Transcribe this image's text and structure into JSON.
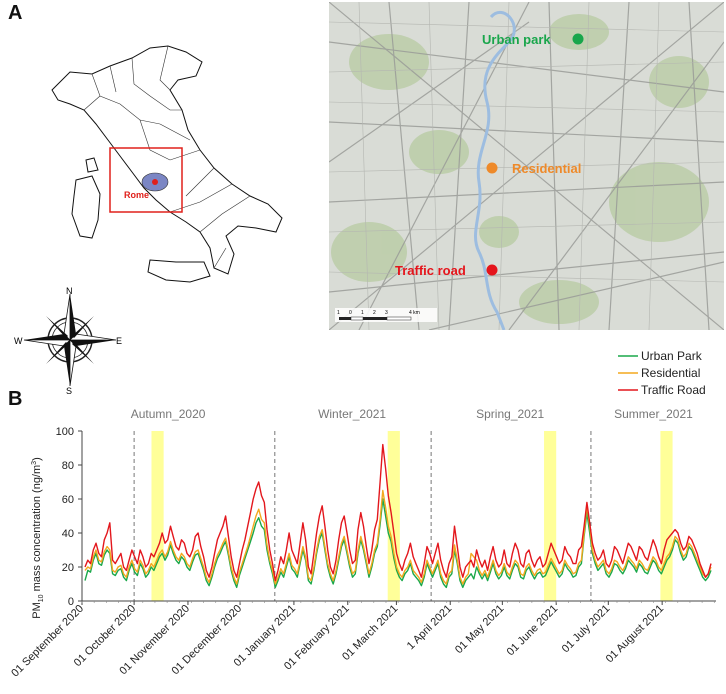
{
  "panels": {
    "a": "A",
    "b": "B"
  },
  "italy_map": {
    "highlight_label": "Rome",
    "frame_color": "#e0201b",
    "region_color": "#7b86c4"
  },
  "compass": {
    "n": "N",
    "s": "S",
    "e": "E",
    "w": "W"
  },
  "rome_map": {
    "sites": [
      {
        "name": "Urban park",
        "color": "#19a64b"
      },
      {
        "name": "Residential",
        "color": "#ee8a2a"
      },
      {
        "name": "Traffic road",
        "color": "#e5141b"
      }
    ],
    "scale_labels": [
      "1",
      "0",
      "1",
      "2",
      "3",
      "4 km"
    ]
  },
  "chart_data": {
    "type": "line",
    "title": "",
    "ylabel_main": "PM",
    "ylabel_sub": "10",
    "ylabel_rest": " mass concentration  (ng/m",
    "ylabel_sup": "3",
    "ylabel_end": ")",
    "ylim": [
      0,
      100
    ],
    "yticks": [
      0,
      20,
      40,
      60,
      80,
      100
    ],
    "x_start": "2020-09-01",
    "x_end": "2021-09-01",
    "xtick_labels": [
      {
        "date": "2020-09-01",
        "label": "01 September 2020"
      },
      {
        "date": "2020-10-01",
        "label": "01 October 2020"
      },
      {
        "date": "2020-11-01",
        "label": "01 November 2020"
      },
      {
        "date": "2020-12-01",
        "label": "01 December 2020"
      },
      {
        "date": "2021-01-01",
        "label": "01 January 2021"
      },
      {
        "date": "2021-02-01",
        "label": "01 February 2021"
      },
      {
        "date": "2021-03-01",
        "label": "01 March 2021"
      },
      {
        "date": "2021-04-01",
        "label": "1 April 2021"
      },
      {
        "date": "2021-05-01",
        "label": "01 May 2021"
      },
      {
        "date": "2021-06-01",
        "label": "01 June 2021"
      },
      {
        "date": "2021-07-01",
        "label": "01 July 2021"
      },
      {
        "date": "2021-08-01",
        "label": "01 August 2021"
      }
    ],
    "seasons": [
      {
        "label": "Autumn_2020",
        "start": "2020-09-01",
        "end": "2020-10-01"
      },
      {
        "label": "Winter_2021",
        "start": "2020-12-21",
        "end": "2021-03-20"
      },
      {
        "label": "Spring_2021",
        "start": "2021-03-21",
        "end": "2021-06-20"
      },
      {
        "label": "Summer_2021",
        "start": "2021-06-21",
        "end": "2021-09-01"
      }
    ],
    "season_dividers": [
      "2020-10-01",
      "2020-12-21",
      "2021-03-21",
      "2021-06-21"
    ],
    "highlights": [
      {
        "start": "2020-10-11",
        "end": "2020-10-18"
      },
      {
        "start": "2021-02-24",
        "end": "2021-03-03"
      },
      {
        "start": "2021-05-25",
        "end": "2021-06-01"
      },
      {
        "start": "2021-07-31",
        "end": "2021-08-07"
      }
    ],
    "highlight_color": "#ffff99",
    "series": [
      {
        "name": "Urban Park",
        "color": "#1aa84a",
        "values": [
          12,
          18,
          17,
          24,
          28,
          22,
          21,
          27,
          30,
          28,
          16,
          15,
          18,
          19,
          14,
          12,
          18,
          22,
          17,
          15,
          22,
          19,
          14,
          16,
          20,
          18,
          22,
          26,
          28,
          24,
          27,
          33,
          28,
          24,
          22,
          26,
          24,
          20,
          18,
          23,
          27,
          28,
          23,
          18,
          12,
          9,
          14,
          20,
          25,
          28,
          32,
          35,
          27,
          18,
          12,
          8,
          15,
          20,
          25,
          30,
          35,
          40,
          46,
          49,
          44,
          42,
          30,
          22,
          16,
          8,
          12,
          17,
          14,
          20,
          26,
          19,
          17,
          14,
          22,
          30,
          24,
          12,
          10,
          18,
          28,
          36,
          40,
          30,
          20,
          14,
          10,
          16,
          24,
          32,
          36,
          28,
          20,
          14,
          16,
          28,
          36,
          30,
          22,
          14,
          20,
          28,
          32,
          45,
          60,
          50,
          40,
          35,
          25,
          18,
          14,
          12,
          16,
          18,
          22,
          16,
          14,
          12,
          9,
          14,
          22,
          18,
          14,
          18,
          22,
          14,
          10,
          8,
          14,
          16,
          30,
          22,
          12,
          8,
          12,
          14,
          16,
          13,
          20,
          16,
          13,
          16,
          12,
          17,
          22,
          16,
          13,
          15,
          20,
          15,
          13,
          18,
          22,
          20,
          14,
          13,
          18,
          20,
          16,
          13,
          16,
          17,
          14,
          15,
          19,
          23,
          20,
          17,
          14,
          16,
          22,
          19,
          17,
          14,
          15,
          20,
          22,
          38,
          52,
          40,
          28,
          22,
          18,
          20,
          22,
          16,
          14,
          17,
          22,
          21,
          18,
          16,
          19,
          24,
          22,
          20,
          17,
          22,
          20,
          17,
          16,
          20,
          24,
          22,
          18,
          16,
          20,
          24,
          26,
          30,
          36,
          34,
          28,
          24,
          26,
          32,
          30,
          26,
          22,
          18,
          14,
          12,
          14,
          18
        ]
      },
      {
        "name": "Residential",
        "color": "#f3a81f",
        "values": [
          18,
          20,
          19,
          26,
          30,
          24,
          23,
          29,
          32,
          30,
          18,
          17,
          20,
          21,
          16,
          14,
          20,
          24,
          19,
          17,
          24,
          21,
          16,
          18,
          22,
          20,
          24,
          28,
          30,
          26,
          29,
          35,
          30,
          26,
          24,
          28,
          26,
          22,
          20,
          25,
          29,
          30,
          25,
          20,
          14,
          11,
          16,
          22,
          27,
          30,
          34,
          37,
          29,
          20,
          14,
          10,
          17,
          22,
          27,
          32,
          38,
          44,
          50,
          54,
          48,
          46,
          33,
          24,
          18,
          10,
          14,
          19,
          16,
          22,
          28,
          21,
          19,
          16,
          24,
          32,
          26,
          14,
          12,
          20,
          30,
          38,
          42,
          32,
          22,
          16,
          12,
          18,
          26,
          34,
          38,
          30,
          22,
          16,
          18,
          30,
          38,
          32,
          24,
          16,
          22,
          30,
          34,
          48,
          65,
          55,
          44,
          38,
          28,
          20,
          16,
          14,
          18,
          20,
          24,
          18,
          16,
          14,
          11,
          16,
          24,
          20,
          16,
          20,
          24,
          16,
          12,
          10,
          16,
          18,
          33,
          24,
          14,
          10,
          14,
          16,
          28,
          26,
          24,
          18,
          15,
          18,
          14,
          19,
          24,
          18,
          15,
          17,
          22,
          17,
          15,
          20,
          24,
          22,
          16,
          15,
          20,
          22,
          18,
          15,
          18,
          19,
          16,
          17,
          21,
          25,
          22,
          19,
          16,
          18,
          24,
          21,
          19,
          16,
          17,
          22,
          24,
          40,
          56,
          44,
          30,
          24,
          20,
          22,
          24,
          18,
          16,
          19,
          24,
          23,
          20,
          18,
          21,
          26,
          24,
          22,
          19,
          24,
          22,
          19,
          18,
          22,
          26,
          24,
          20,
          18,
          22,
          26,
          28,
          32,
          38,
          36,
          30,
          26,
          28,
          34,
          32,
          28,
          24,
          20,
          16,
          14,
          16,
          20
        ]
      },
      {
        "name": "Traffic Road",
        "color": "#e3171d",
        "values": [
          20,
          24,
          22,
          30,
          34,
          28,
          26,
          36,
          40,
          46,
          24,
          22,
          25,
          28,
          20,
          18,
          24,
          30,
          26,
          22,
          30,
          26,
          20,
          22,
          28,
          26,
          30,
          34,
          40,
          34,
          36,
          44,
          38,
          32,
          30,
          36,
          34,
          28,
          26,
          30,
          38,
          40,
          32,
          26,
          18,
          14,
          20,
          28,
          36,
          40,
          44,
          50,
          38,
          26,
          18,
          14,
          22,
          30,
          36,
          44,
          52,
          60,
          66,
          70,
          62,
          58,
          42,
          30,
          22,
          12,
          18,
          26,
          22,
          30,
          40,
          30,
          26,
          22,
          34,
          46,
          36,
          20,
          16,
          28,
          40,
          50,
          56,
          44,
          30,
          20,
          16,
          24,
          36,
          46,
          50,
          40,
          30,
          22,
          24,
          42,
          52,
          44,
          32,
          22,
          30,
          42,
          48,
          70,
          92,
          78,
          62,
          52,
          40,
          28,
          22,
          18,
          24,
          28,
          34,
          26,
          22,
          18,
          14,
          22,
          32,
          28,
          22,
          28,
          34,
          24,
          18,
          14,
          22,
          26,
          44,
          32,
          20,
          14,
          20,
          22,
          24,
          20,
          30,
          24,
          20,
          24,
          18,
          26,
          32,
          24,
          20,
          22,
          30,
          22,
          20,
          28,
          34,
          30,
          22,
          20,
          28,
          30,
          24,
          20,
          24,
          26,
          20,
          22,
          28,
          34,
          30,
          26,
          22,
          24,
          32,
          28,
          26,
          22,
          22,
          30,
          32,
          44,
          58,
          46,
          34,
          28,
          24,
          26,
          30,
          22,
          20,
          24,
          32,
          30,
          26,
          22,
          28,
          34,
          32,
          28,
          24,
          32,
          30,
          26,
          24,
          30,
          36,
          32,
          26,
          22,
          30,
          36,
          38,
          40,
          42,
          40,
          34,
          30,
          32,
          38,
          36,
          32,
          28,
          22,
          18,
          14,
          16,
          22
        ]
      }
    ],
    "legend_position": "top-right"
  }
}
